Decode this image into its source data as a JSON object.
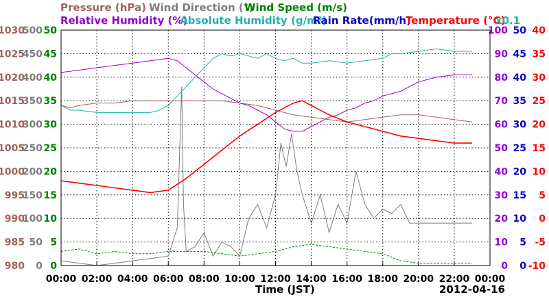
{
  "chart_data": {
    "type": "line",
    "date": "2012-04-16",
    "xlabel": "Time (JST)",
    "x_tick_labels": [
      "00:00",
      "02:00",
      "04:00",
      "06:00",
      "08:00",
      "10:00",
      "12:00",
      "14:00",
      "16:00",
      "18:00",
      "20:00",
      "22:00",
      "00:00"
    ],
    "grid": true,
    "headers": {
      "pressure": "Pressure (hPa)",
      "wind_direction": "Wind Direction (°)",
      "wind_speed": "Wind Speed (m/s)",
      "relative_humidity": "Relative Humidity (%)",
      "absolute_humidity": "Absolute Humidity (g/m³)",
      "rain_rate": "Rain Rate(mm/h)",
      "temperature": "Temperature (°C)",
      "scale_note": "x0.1"
    },
    "axes": {
      "pressure": {
        "ticks": [
          "1030",
          "1025",
          "1020",
          "1015",
          "1010",
          "1005",
          "1000",
          "995",
          "990",
          "985",
          "980"
        ],
        "range": [
          980,
          1030
        ],
        "color": "#a0625f"
      },
      "wind_direction": {
        "ticks": [
          "500",
          "450",
          "400",
          "350",
          "300",
          "250",
          "200",
          "150",
          "100",
          "50",
          "0"
        ],
        "range": [
          0,
          500
        ],
        "color": "#7d7d7d"
      },
      "wind_speed": {
        "ticks": [
          "50",
          "45",
          "40",
          "35",
          "30",
          "25",
          "20",
          "15",
          "10",
          "5",
          "0"
        ],
        "range": [
          0,
          50
        ],
        "color": "#008000"
      },
      "relative_humidity": {
        "ticks": [
          "100",
          "90",
          "80",
          "70",
          "60",
          "50",
          "40",
          "30",
          "20",
          "10",
          "0"
        ],
        "range": [
          0,
          100
        ],
        "color": "#9400d3"
      },
      "absolute_humidity": {
        "ticks": [
          "50",
          "45",
          "40",
          "35",
          "30",
          "25",
          "20",
          "15",
          "10",
          "5",
          "0"
        ],
        "range": [
          0,
          50
        ],
        "color": "#20b2aa"
      },
      "rain_rate": {
        "ticks": [
          "50",
          "45",
          "40",
          "35",
          "30",
          "25",
          "20",
          "15",
          "10",
          "5",
          "0"
        ],
        "range": [
          0,
          50
        ],
        "color": "#0000cd"
      },
      "temperature": {
        "ticks": [
          "40",
          "35",
          "30",
          "25",
          "20",
          "15",
          "10",
          "5",
          "0",
          "-5",
          "-10"
        ],
        "range": [
          -10,
          40
        ],
        "color": "#ff0000"
      }
    },
    "series": [
      {
        "key": "pressure",
        "color": "#a0625f",
        "x": [
          0,
          0.5,
          1,
          2,
          3,
          4,
          5,
          6,
          7,
          8,
          9,
          10,
          11,
          12,
          13,
          14,
          15,
          16,
          17,
          18,
          19,
          20,
          21,
          22,
          23
        ],
        "y": [
          1014,
          1013.5,
          1014,
          1014.5,
          1014.5,
          1015,
          1015,
          1015,
          1015,
          1015,
          1015,
          1014.5,
          1014,
          1013,
          1012,
          1011.5,
          1011,
          1010.5,
          1011,
          1011.5,
          1012,
          1012,
          1011.5,
          1011,
          1010.5
        ]
      },
      {
        "key": "relative_humidity",
        "color": "#9400d3",
        "x": [
          0,
          1,
          2,
          3,
          4,
          5,
          6,
          6.5,
          7,
          7.5,
          8,
          8.5,
          9,
          9.5,
          10,
          10.5,
          11,
          11.5,
          12,
          12.5,
          13,
          13.5,
          14,
          14.5,
          15,
          15.5,
          16,
          16.5,
          17,
          17.5,
          18,
          18.5,
          19,
          19.5,
          20,
          21,
          22,
          23
        ],
        "y": [
          82,
          83,
          84,
          85,
          86,
          87,
          88,
          87,
          84,
          81,
          78,
          75,
          73,
          71,
          69,
          68,
          66,
          64,
          61,
          58,
          57,
          57,
          59,
          61,
          63,
          64,
          66,
          67,
          69,
          70,
          72,
          73,
          74,
          76,
          78,
          80,
          81,
          81
        ]
      },
      {
        "key": "absolute_humidity",
        "color": "#20b2aa",
        "x": [
          0,
          0.5,
          1,
          2,
          3,
          4,
          5,
          5.5,
          6,
          6.5,
          7,
          7.5,
          8,
          8.5,
          9,
          9.5,
          10,
          10.5,
          11,
          11.5,
          12,
          12.5,
          13,
          13.5,
          14,
          15,
          16,
          17,
          18,
          18.5,
          19,
          20,
          21,
          22,
          23
        ],
        "y": [
          34,
          33,
          33,
          32.5,
          32.5,
          32.5,
          32.5,
          33,
          34,
          36,
          38,
          40,
          42,
          44,
          45,
          44.5,
          45,
          44.5,
          44,
          45,
          44,
          43.5,
          44,
          43,
          43,
          43.5,
          43,
          43.5,
          44,
          45,
          45,
          45.5,
          46,
          45.5,
          45.5
        ]
      },
      {
        "key": "temperature",
        "color": "#ff0000",
        "x": [
          0,
          1,
          2,
          3,
          4,
          5,
          6,
          7,
          8,
          9,
          10,
          11,
          12,
          13,
          13.5,
          14,
          15,
          16,
          17,
          18,
          19,
          20,
          21,
          22,
          23
        ],
        "y": [
          8,
          7.5,
          7,
          6.5,
          6,
          5.5,
          6,
          8.5,
          11.5,
          14.5,
          17.5,
          20,
          22.5,
          24.5,
          25,
          24,
          22,
          20.5,
          19.5,
          18.5,
          17.5,
          17,
          16.5,
          16,
          16
        ]
      },
      {
        "key": "wind_direction",
        "color": "#7d7d7d",
        "x": [
          0,
          1,
          2,
          3,
          4,
          5,
          6,
          6.5,
          6.75,
          6.85,
          7,
          7.5,
          8,
          8.5,
          9,
          9.5,
          10,
          10.5,
          11,
          11.5,
          12,
          12.3,
          12.6,
          12.9,
          13.2,
          13.5,
          14,
          14.5,
          15,
          15.5,
          16,
          16.5,
          17,
          17.5,
          18,
          18.5,
          19,
          19.5,
          20,
          21,
          22,
          23
        ],
        "y": [
          10,
          5,
          0,
          5,
          10,
          15,
          20,
          80,
          380,
          130,
          30,
          40,
          70,
          20,
          50,
          40,
          20,
          100,
          130,
          80,
          150,
          260,
          210,
          280,
          200,
          150,
          90,
          150,
          70,
          130,
          90,
          200,
          130,
          100,
          120,
          110,
          130,
          90,
          90,
          90,
          90,
          90
        ]
      },
      {
        "key": "wind_speed",
        "color": "#008000",
        "x": [
          0,
          1,
          2,
          3,
          4,
          5,
          6,
          7,
          8,
          9,
          10,
          11,
          12,
          13,
          14,
          15,
          16,
          17,
          18,
          19,
          20,
          21,
          22,
          23
        ],
        "y": [
          3,
          3.5,
          2.5,
          3,
          2.5,
          2.5,
          3,
          3,
          3,
          2.5,
          2,
          2.5,
          3,
          4,
          4.5,
          4,
          3.5,
          3,
          2.5,
          1,
          0.5,
          0.5,
          0.5,
          0.5
        ]
      }
    ]
  }
}
